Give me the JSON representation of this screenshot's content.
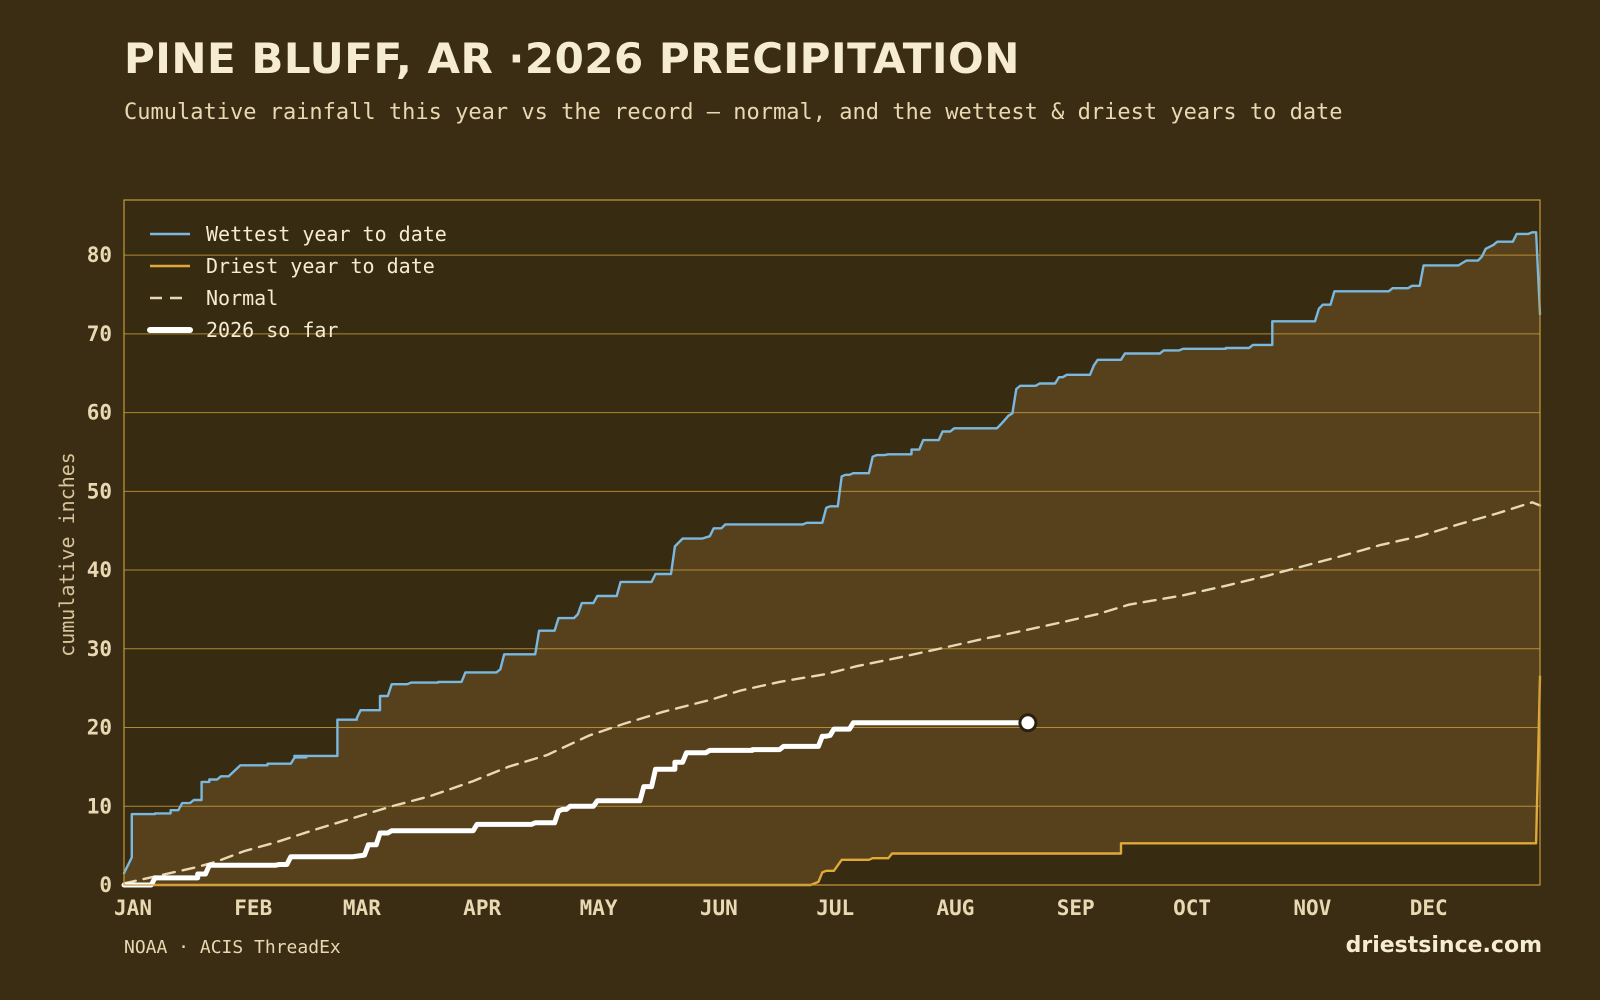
{
  "header": {
    "title": "PINE BLUFF, AR ·2026 PRECIPITATION",
    "subtitle": "Cumulative rainfall this year vs the record — normal, and the wettest & driest years to date"
  },
  "footer": {
    "source": "NOAA · ACIS ThreadEx",
    "site": "driestsince.com"
  },
  "colors": {
    "background": "#3a2d14",
    "plot_bg": "#372b12",
    "band_fill": "#57421d",
    "grid": "#c49a3a",
    "wettest": "#7ab8e0",
    "driest": "#e0a93a",
    "normal": "#e8d9b2",
    "current": "#ffffff"
  },
  "chart_data": {
    "type": "line",
    "title": "PINE BLUFF, AR ·2026 PRECIPITATION",
    "ylabel": "cumulative inches",
    "xlabel": "",
    "x_unit": "day of year",
    "xlim": [
      1,
      366
    ],
    "ylim": [
      0,
      87
    ],
    "y_ticks": [
      0,
      10,
      20,
      30,
      40,
      50,
      60,
      70,
      80
    ],
    "x_ticks": [
      {
        "day": 1,
        "label": "JAN"
      },
      {
        "day": 32,
        "label": "FEB"
      },
      {
        "day": 60,
        "label": "MAR"
      },
      {
        "day": 91,
        "label": "APR"
      },
      {
        "day": 121,
        "label": "MAY"
      },
      {
        "day": 152,
        "label": "JUN"
      },
      {
        "day": 182,
        "label": "JUL"
      },
      {
        "day": 213,
        "label": "AUG"
      },
      {
        "day": 244,
        "label": "SEP"
      },
      {
        "day": 274,
        "label": "OCT"
      },
      {
        "day": 305,
        "label": "NOV"
      },
      {
        "day": 335,
        "label": "DEC"
      }
    ],
    "grid": "horizontal",
    "legend_position": "top-left",
    "series": [
      {
        "name": "Wettest year to date",
        "style": "step",
        "points": [
          [
            1,
            1.5
          ],
          [
            3,
            3.5
          ],
          [
            3,
            9.0
          ],
          [
            9,
            9.0
          ],
          [
            9,
            9.1
          ],
          [
            13,
            9.1
          ],
          [
            13,
            9.5
          ],
          [
            15,
            9.5
          ],
          [
            16,
            10.4
          ],
          [
            18,
            10.4
          ],
          [
            19,
            10.8
          ],
          [
            21,
            10.8
          ],
          [
            21,
            13.1
          ],
          [
            23,
            13.1
          ],
          [
            23,
            13.4
          ],
          [
            25,
            13.4
          ],
          [
            26,
            13.8
          ],
          [
            28,
            13.8
          ],
          [
            31,
            15.2
          ],
          [
            38,
            15.2
          ],
          [
            38,
            15.4
          ],
          [
            44,
            15.4
          ],
          [
            45,
            16.2
          ],
          [
            48,
            16.2
          ],
          [
            48,
            16.4
          ],
          [
            44.9,
            16.4
          ],
          [
            45,
            16.4
          ],
          [
            45,
            16.4
          ],
          [
            46,
            16.4
          ],
          [
            46,
            16.4
          ],
          [
            46,
            16.4
          ],
          [
            48,
            16.4
          ],
          [
            48,
            16.4
          ],
          [
            49,
            16.4
          ],
          [
            49,
            16.4
          ],
          [
            50,
            16.4
          ],
          [
            50,
            16.4
          ],
          [
            50,
            16.4
          ],
          [
            50,
            16.4
          ],
          [
            51,
            16.4
          ],
          [
            51,
            16.4
          ],
          [
            52,
            16.4
          ],
          [
            52,
            16.4
          ],
          [
            52,
            16.4
          ],
          [
            52,
            16.4
          ],
          [
            53,
            16.4
          ],
          [
            53,
            16.4
          ],
          [
            53,
            16.4
          ],
          [
            53,
            16.4
          ],
          [
            53,
            16.4
          ],
          [
            53,
            16.4
          ],
          [
            53,
            16.4
          ],
          [
            53,
            16.4
          ],
          [
            54,
            16.4
          ],
          [
            54,
            16.4
          ],
          [
            54,
            16.4
          ],
          [
            54,
            16.4
          ],
          [
            54,
            16.4
          ],
          [
            55,
            16.4
          ],
          [
            55,
            16.4
          ],
          [
            55,
            16.4
          ],
          [
            55,
            16.4
          ],
          [
            55,
            16.4
          ],
          [
            55,
            16.4
          ],
          [
            56,
            16.4
          ],
          [
            56,
            21.0
          ],
          [
            61,
            21.0
          ],
          [
            61,
            21.2
          ],
          [
            62,
            22.2
          ],
          [
            67,
            22.2
          ],
          [
            67,
            24.0
          ],
          [
            69,
            24.0
          ],
          [
            70,
            25.5
          ],
          [
            74,
            25.5
          ],
          [
            75,
            25.7
          ],
          [
            82,
            25.7
          ],
          [
            82,
            25.8
          ],
          [
            88,
            25.8
          ],
          [
            89,
            27.0
          ],
          [
            97,
            27.0
          ],
          [
            98,
            27.4
          ],
          [
            99,
            29.3
          ],
          [
            107,
            29.3
          ],
          [
            108,
            32.3
          ],
          [
            112,
            32.3
          ],
          [
            113,
            33.9
          ],
          [
            117,
            33.9
          ],
          [
            118,
            34.4
          ],
          [
            119,
            35.8
          ],
          [
            122,
            35.8
          ],
          [
            123,
            36.7
          ],
          [
            128,
            36.7
          ],
          [
            129,
            38.5
          ],
          [
            137,
            38.5
          ],
          [
            138,
            39.5
          ],
          [
            142,
            39.5
          ],
          [
            143,
            43.0
          ],
          [
            145,
            44.0
          ],
          [
            150,
            44.0
          ],
          [
            152,
            44.3
          ],
          [
            153,
            45.3
          ],
          [
            155,
            45.3
          ],
          [
            156,
            45.8
          ],
          [
            171,
            45.8
          ],
          [
            171,
            45.8
          ],
          [
            176,
            45.8
          ],
          [
            177,
            46.0
          ],
          [
            181,
            46.0
          ],
          [
            182,
            47.9
          ],
          [
            183,
            48.1
          ],
          [
            185,
            48.1
          ],
          [
            186,
            51.9
          ],
          [
            187,
            52.1
          ],
          [
            188,
            52.1
          ],
          [
            189,
            52.3
          ],
          [
            193,
            52.3
          ],
          [
            193,
            52.3
          ],
          [
            193,
            52.3
          ],
          [
            194,
            54.4
          ],
          [
            195,
            54.6
          ],
          [
            197,
            54.6
          ],
          [
            198,
            54.7
          ],
          [
            204,
            54.7
          ],
          [
            204,
            55.3
          ],
          [
            206,
            55.3
          ],
          [
            207,
            56.5
          ],
          [
            211,
            56.5
          ],
          [
            212,
            57.6
          ],
          [
            214,
            57.6
          ],
          [
            215,
            58.0
          ],
          [
            224,
            58.0
          ],
          [
            224,
            58.0
          ],
          [
            226,
            58.0
          ],
          [
            227,
            58.5
          ],
          [
            229,
            59.6
          ],
          [
            230,
            59.9
          ],
          [
            231,
            63.0
          ],
          [
            232,
            63.4
          ],
          [
            236,
            63.4
          ],
          [
            237,
            63.7
          ],
          [
            241,
            63.7
          ],
          [
            242,
            64.5
          ],
          [
            243,
            64.5
          ],
          [
            244,
            64.8
          ],
          [
            250,
            64.8
          ],
          [
            251,
            66.0
          ],
          [
            252,
            66.7
          ],
          [
            258,
            66.7
          ],
          [
            259,
            67.5
          ],
          [
            268,
            67.5
          ],
          [
            269,
            67.9
          ],
          [
            273,
            67.9
          ],
          [
            274,
            68.1
          ],
          [
            285,
            68.1
          ],
          [
            285,
            68.2
          ],
          [
            291,
            68.2
          ],
          [
            292,
            68.6
          ],
          [
            297,
            68.6
          ],
          [
            297,
            71.6
          ],
          [
            308,
            71.6
          ],
          [
            309,
            73.2
          ],
          [
            310,
            73.7
          ],
          [
            312,
            73.7
          ],
          [
            313,
            75.4
          ],
          [
            324,
            75.4
          ],
          [
            324,
            75.4
          ],
          [
            327,
            75.4
          ],
          [
            328,
            75.8
          ],
          [
            332,
            75.8
          ],
          [
            333,
            76.1
          ],
          [
            335,
            76.1
          ],
          [
            336,
            78.7
          ],
          [
            345,
            78.7
          ],
          [
            347,
            79.3
          ],
          [
            350,
            79.3
          ],
          [
            351,
            79.8
          ],
          [
            352,
            80.8
          ],
          [
            354,
            81.3
          ],
          [
            355,
            81.7
          ],
          [
            359,
            81.7
          ],
          [
            360,
            82.7
          ],
          [
            363,
            82.7
          ],
          [
            364,
            82.9
          ],
          [
            365,
            82.9
          ],
          [
            366,
            72.5
          ]
        ]
      },
      {
        "name": "Driest year to date",
        "style": "step",
        "points": [
          [
            1,
            0.0
          ],
          [
            178,
            0.0
          ],
          [
            180,
            0.4
          ],
          [
            181,
            1.6
          ],
          [
            182,
            1.8
          ],
          [
            184,
            1.8
          ],
          [
            186,
            3.2
          ],
          [
            193,
            3.2
          ],
          [
            194,
            3.4
          ],
          [
            198,
            3.4
          ],
          [
            199,
            4.0
          ],
          [
            258,
            4.0
          ],
          [
            258,
            5.3
          ],
          [
            365,
            5.3
          ],
          [
            366,
            26.5
          ]
        ]
      },
      {
        "name": "Normal",
        "style": "dashed",
        "points": [
          [
            1,
            0.2
          ],
          [
            10,
            1.2
          ],
          [
            20,
            2.3
          ],
          [
            25,
            3.0
          ],
          [
            32,
            4.3
          ],
          [
            40,
            5.4
          ],
          [
            50,
            7.0
          ],
          [
            60,
            8.5
          ],
          [
            70,
            10.0
          ],
          [
            80,
            11.3
          ],
          [
            91,
            13.2
          ],
          [
            100,
            15.0
          ],
          [
            110,
            16.5
          ],
          [
            121,
            19.0
          ],
          [
            130,
            20.5
          ],
          [
            140,
            22.0
          ],
          [
            152,
            23.5
          ],
          [
            160,
            24.7
          ],
          [
            170,
            25.8
          ],
          [
            182,
            26.8
          ],
          [
            190,
            27.8
          ],
          [
            200,
            28.8
          ],
          [
            213,
            30.2
          ],
          [
            222,
            31.2
          ],
          [
            230,
            32.0
          ],
          [
            244,
            33.5
          ],
          [
            252,
            34.4
          ],
          [
            260,
            35.6
          ],
          [
            274,
            36.8
          ],
          [
            285,
            38.0
          ],
          [
            295,
            39.2
          ],
          [
            305,
            40.5
          ],
          [
            315,
            41.8
          ],
          [
            325,
            43.2
          ],
          [
            335,
            44.3
          ],
          [
            345,
            45.8
          ],
          [
            355,
            47.2
          ],
          [
            364,
            48.6
          ],
          [
            366,
            48.2
          ]
        ]
      },
      {
        "name": "2026 so far",
        "style": "step-bold",
        "points": [
          [
            1,
            0.0
          ],
          [
            8,
            0.0
          ],
          [
            9,
            0.9
          ],
          [
            20,
            0.9
          ],
          [
            20,
            1.4
          ],
          [
            22,
            1.4
          ],
          [
            23,
            2.5
          ],
          [
            40,
            2.5
          ],
          [
            41,
            2.6
          ],
          [
            43,
            2.6
          ],
          [
            44,
            3.6
          ],
          [
            60,
            3.6
          ],
          [
            63,
            3.8
          ],
          [
            64,
            5.1
          ],
          [
            66,
            5.1
          ],
          [
            67,
            6.6
          ],
          [
            69,
            6.6
          ],
          [
            70,
            6.9
          ],
          [
            91,
            6.9
          ],
          [
            92,
            7.7
          ],
          [
            106,
            7.7
          ],
          [
            107,
            7.9
          ],
          [
            112,
            7.9
          ],
          [
            113,
            9.4
          ],
          [
            114,
            9.6
          ],
          [
            115,
            9.6
          ],
          [
            116,
            10.0
          ],
          [
            122,
            10.0
          ],
          [
            123,
            10.7
          ],
          [
            134,
            10.7
          ],
          [
            135,
            12.5
          ],
          [
            137,
            12.5
          ],
          [
            138,
            14.7
          ],
          [
            143,
            14.7
          ],
          [
            143,
            15.6
          ],
          [
            145,
            15.6
          ],
          [
            146,
            16.8
          ],
          [
            151,
            16.8
          ],
          [
            152,
            17.1
          ],
          [
            163,
            17.1
          ],
          [
            163,
            17.2
          ],
          [
            170,
            17.2
          ],
          [
            171,
            17.6
          ],
          [
            180,
            17.6
          ],
          [
            181,
            18.9
          ],
          [
            182,
            18.9
          ],
          [
            183,
            19.0
          ],
          [
            184,
            19.8
          ],
          [
            188,
            19.8
          ],
          [
            189,
            20.6
          ],
          [
            234,
            20.6
          ]
        ],
        "endpoint": [
          234,
          20.6
        ]
      }
    ]
  }
}
